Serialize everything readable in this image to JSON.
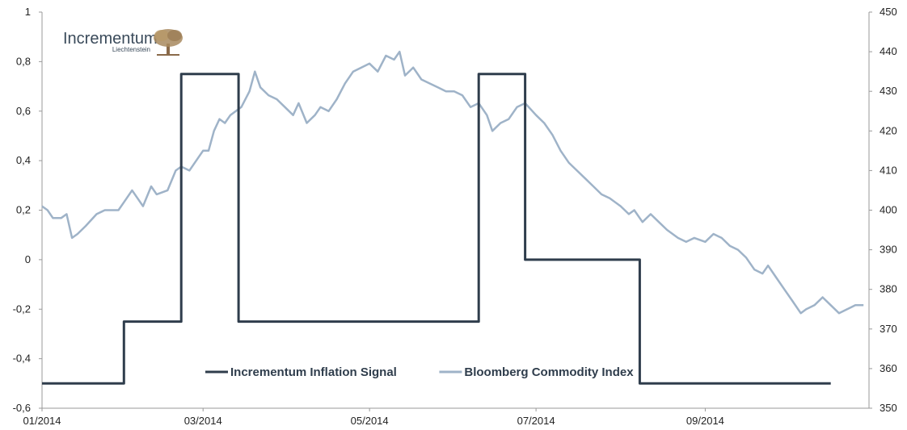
{
  "chart_data": {
    "type": "line",
    "x_axis": {
      "tick_labels": [
        "01/2014",
        "03/2014",
        "05/2014",
        "07/2014",
        "09/2014"
      ],
      "range": [
        "2014-01-01",
        "2014-10-31"
      ]
    },
    "y_axis_left": {
      "ylim": [
        -0.6,
        1
      ],
      "tick_labels": [
        "1",
        "0,8",
        "0,6",
        "0,4",
        "0,2",
        "0",
        "-0,2",
        "-0,4",
        "-0,6"
      ]
    },
    "y_axis_right": {
      "ylim": [
        350,
        450
      ],
      "tick_labels": [
        "450",
        "440",
        "430",
        "420",
        "410",
        "400",
        "390",
        "380",
        "370",
        "360",
        "350"
      ]
    },
    "grid": false,
    "legend_position": "bottom-center",
    "series": [
      {
        "name": "Incrementum Inflation Signal",
        "axis": "left",
        "color": "#2f3d4c",
        "style": "step",
        "points": [
          [
            "2014-01-01",
            -0.5
          ],
          [
            "2014-01-31",
            -0.5
          ],
          [
            "2014-01-31",
            -0.25
          ],
          [
            "2014-02-21",
            -0.25
          ],
          [
            "2014-02-21",
            0.75
          ],
          [
            "2014-03-14",
            0.75
          ],
          [
            "2014-03-14",
            -0.25
          ],
          [
            "2014-06-10",
            -0.25
          ],
          [
            "2014-06-10",
            0.75
          ],
          [
            "2014-06-27",
            0.75
          ],
          [
            "2014-06-27",
            0.0
          ],
          [
            "2014-08-08",
            0.0
          ],
          [
            "2014-08-08",
            -0.5
          ],
          [
            "2014-10-17",
            -0.5
          ]
        ]
      },
      {
        "name": "Bloomberg Commodity Index",
        "axis": "right",
        "color": "#9fb3c8",
        "style": "line",
        "points": [
          [
            "2014-01-01",
            401
          ],
          [
            "2014-01-03",
            400
          ],
          [
            "2014-01-05",
            398
          ],
          [
            "2014-01-08",
            398
          ],
          [
            "2014-01-10",
            399
          ],
          [
            "2014-01-12",
            393
          ],
          [
            "2014-01-14",
            394
          ],
          [
            "2014-01-17",
            396
          ],
          [
            "2014-01-21",
            399
          ],
          [
            "2014-01-24",
            400
          ],
          [
            "2014-01-29",
            400
          ],
          [
            "2014-01-31",
            402
          ],
          [
            "2014-02-03",
            405
          ],
          [
            "2014-02-05",
            403
          ],
          [
            "2014-02-07",
            401
          ],
          [
            "2014-02-10",
            406
          ],
          [
            "2014-02-12",
            404
          ],
          [
            "2014-02-16",
            405
          ],
          [
            "2014-02-19",
            410
          ],
          [
            "2014-02-21",
            411
          ],
          [
            "2014-02-24",
            410
          ],
          [
            "2014-02-27",
            413
          ],
          [
            "2014-03-01",
            415
          ],
          [
            "2014-03-03",
            415
          ],
          [
            "2014-03-05",
            420
          ],
          [
            "2014-03-07",
            423
          ],
          [
            "2014-03-09",
            422
          ],
          [
            "2014-03-11",
            424
          ],
          [
            "2014-03-13",
            425
          ],
          [
            "2014-03-15",
            426
          ],
          [
            "2014-03-18",
            430
          ],
          [
            "2014-03-20",
            435
          ],
          [
            "2014-03-22",
            431
          ],
          [
            "2014-03-25",
            429
          ],
          [
            "2014-03-28",
            428
          ],
          [
            "2014-03-31",
            426
          ],
          [
            "2014-04-03",
            424
          ],
          [
            "2014-04-05",
            427
          ],
          [
            "2014-04-08",
            422
          ],
          [
            "2014-04-11",
            424
          ],
          [
            "2014-04-13",
            426
          ],
          [
            "2014-04-16",
            425
          ],
          [
            "2014-04-19",
            428
          ],
          [
            "2014-04-22",
            432
          ],
          [
            "2014-04-25",
            435
          ],
          [
            "2014-04-28",
            436
          ],
          [
            "2014-05-01",
            437
          ],
          [
            "2014-05-04",
            435
          ],
          [
            "2014-05-07",
            439
          ],
          [
            "2014-05-10",
            438
          ],
          [
            "2014-05-12",
            440
          ],
          [
            "2014-05-14",
            434
          ],
          [
            "2014-05-17",
            436
          ],
          [
            "2014-05-20",
            433
          ],
          [
            "2014-05-23",
            432
          ],
          [
            "2014-05-26",
            431
          ],
          [
            "2014-05-29",
            430
          ],
          [
            "2014-06-01",
            430
          ],
          [
            "2014-06-04",
            429
          ],
          [
            "2014-06-07",
            426
          ],
          [
            "2014-06-10",
            427
          ],
          [
            "2014-06-13",
            424
          ],
          [
            "2014-06-15",
            420
          ],
          [
            "2014-06-18",
            422
          ],
          [
            "2014-06-21",
            423
          ],
          [
            "2014-06-24",
            426
          ],
          [
            "2014-06-27",
            427
          ],
          [
            "2014-07-01",
            424
          ],
          [
            "2014-07-04",
            422
          ],
          [
            "2014-07-07",
            419
          ],
          [
            "2014-07-10",
            415
          ],
          [
            "2014-07-13",
            412
          ],
          [
            "2014-07-16",
            410
          ],
          [
            "2014-07-19",
            408
          ],
          [
            "2014-07-22",
            406
          ],
          [
            "2014-07-25",
            404
          ],
          [
            "2014-07-28",
            403
          ],
          [
            "2014-08-01",
            401
          ],
          [
            "2014-08-04",
            399
          ],
          [
            "2014-08-06",
            400
          ],
          [
            "2014-08-09",
            397
          ],
          [
            "2014-08-12",
            399
          ],
          [
            "2014-08-15",
            397
          ],
          [
            "2014-08-18",
            395
          ],
          [
            "2014-08-22",
            393
          ],
          [
            "2014-08-25",
            392
          ],
          [
            "2014-08-28",
            393
          ],
          [
            "2014-09-01",
            392
          ],
          [
            "2014-09-04",
            394
          ],
          [
            "2014-09-07",
            393
          ],
          [
            "2014-09-10",
            391
          ],
          [
            "2014-09-13",
            390
          ],
          [
            "2014-09-16",
            388
          ],
          [
            "2014-09-19",
            385
          ],
          [
            "2014-09-22",
            384
          ],
          [
            "2014-09-24",
            386
          ],
          [
            "2014-09-27",
            383
          ],
          [
            "2014-09-30",
            380
          ],
          [
            "2014-10-03",
            377
          ],
          [
            "2014-10-06",
            374
          ],
          [
            "2014-10-08",
            375
          ],
          [
            "2014-10-11",
            376
          ],
          [
            "2014-10-14",
            378
          ],
          [
            "2014-10-17",
            376
          ],
          [
            "2014-10-20",
            374
          ],
          [
            "2014-10-23",
            375
          ],
          [
            "2014-10-26",
            376
          ],
          [
            "2014-10-29",
            376
          ]
        ]
      }
    ]
  },
  "logo": {
    "name": "Incrementum",
    "subtitle": "Liechtenstein"
  }
}
